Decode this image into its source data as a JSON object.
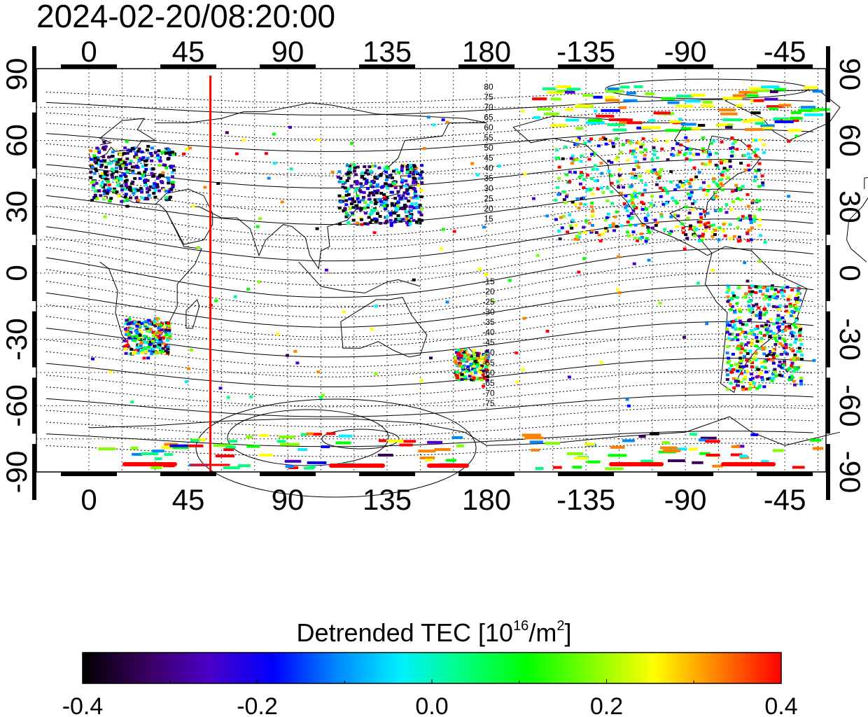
{
  "timestamp": "2024-02-20/08:20:00",
  "map": {
    "lon_ticks": [
      "0",
      "45",
      "90",
      "135",
      "180",
      "-135",
      "-90",
      "-45"
    ],
    "lat_ticks": [
      "90",
      "60",
      "30",
      "0",
      "-30",
      "-60",
      "-90"
    ],
    "gridlines": "dotted",
    "marker_longitude": 55,
    "contour_labels_north": [
      "80",
      "75",
      "70",
      "65",
      "60",
      "55",
      "50",
      "45",
      "40",
      "35",
      "30",
      "25",
      "20",
      "15"
    ],
    "contour_labels_south": [
      "-15",
      "-20",
      "-25",
      "-30",
      "-35",
      "-40",
      "-45",
      "-50",
      "-55",
      "-60",
      "-65",
      "-70",
      "-75"
    ],
    "data_regions": [
      "Europe",
      "East Asia / Japan",
      "North America",
      "South America",
      "Southern Africa",
      "New Zealand",
      "Antarctica"
    ]
  },
  "colorbar": {
    "title_prefix": "Detrended TEC  [10",
    "title_exp1": "16",
    "title_mid": "/m",
    "title_exp2": "2",
    "title_suffix": "]",
    "min": -0.4,
    "max": 0.4,
    "ticks": [
      "-0.4",
      "-0.2",
      "0.0",
      "0.2",
      "0.4"
    ],
    "palette": [
      "#000000",
      "#3a0060",
      "#4a00c8",
      "#0000ff",
      "#0088ff",
      "#00f0ff",
      "#00ff80",
      "#00ff00",
      "#80ff00",
      "#ffff00",
      "#ff8000",
      "#ff0000"
    ]
  },
  "colors": {
    "marker": "#ff0000",
    "grid": "#000000"
  }
}
